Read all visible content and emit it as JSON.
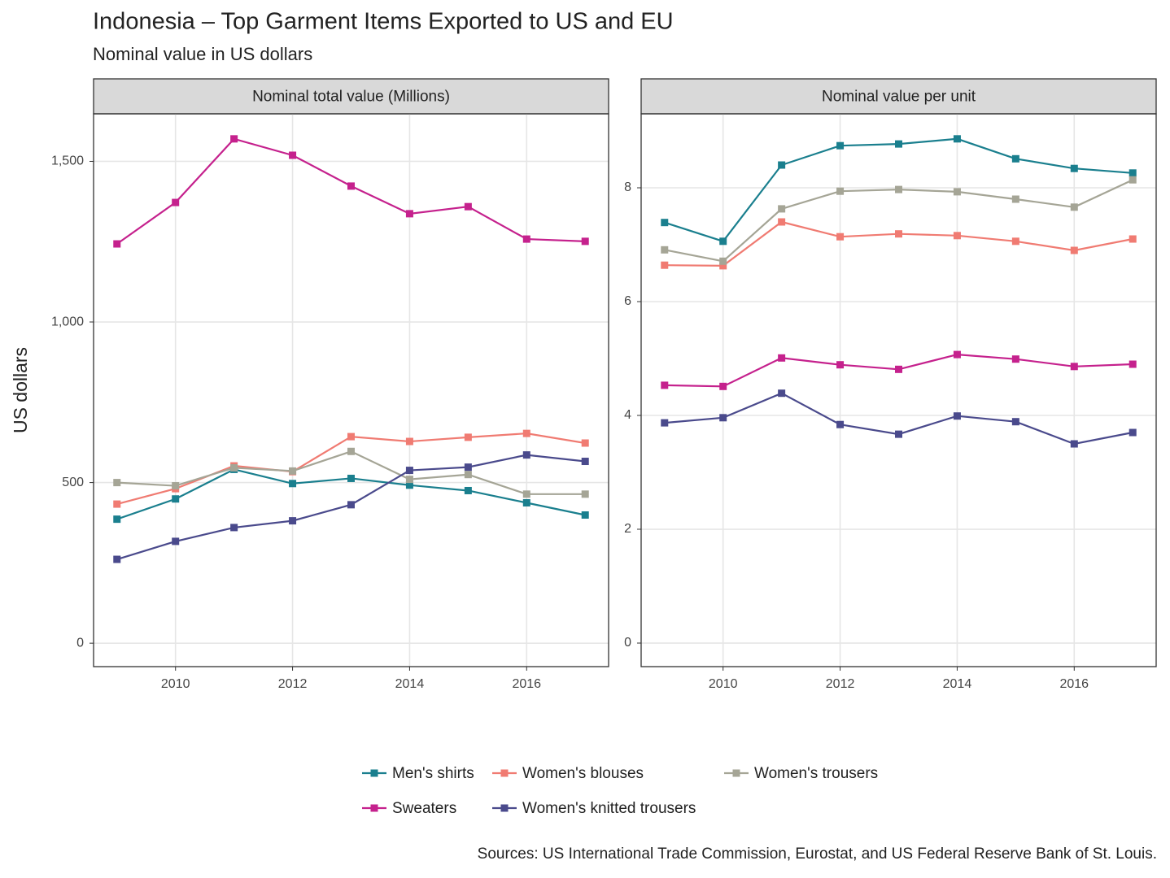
{
  "title": "Indonesia – Top Garment Items Exported to US and EU",
  "subtitle": "Nominal value in US dollars",
  "y_label": "US dollars",
  "source": "Sources: US International Trade Commission, Eurostat, and US Federal Reserve Bank of St. Louis.",
  "chart_data": [
    {
      "type": "line",
      "title": "Nominal total value (Millions)",
      "x": [
        2009,
        2010,
        2011,
        2012,
        2013,
        2014,
        2015,
        2016,
        2017
      ],
      "xlim": [
        2008.6,
        2017.4
      ],
      "xticks": [
        2010,
        2012,
        2014,
        2016
      ],
      "ylim": [
        -73,
        1648
      ],
      "yticks": [
        0,
        500,
        {
          "value": 1000,
          "label": "1,000"
        },
        {
          "value": 1500,
          "label": "1,500"
        }
      ],
      "grid": true,
      "series": [
        {
          "name": "Men's shirts",
          "color": "#1a7f8e",
          "values": [
            386,
            449,
            541,
            497,
            513,
            492,
            475,
            437,
            399
          ]
        },
        {
          "name": "Women's blouses",
          "color": "#f07b72",
          "values": [
            433,
            481,
            552,
            534,
            643,
            628,
            641,
            653,
            623
          ]
        },
        {
          "name": "Women's trousers",
          "color": "#a5a596",
          "values": [
            500,
            490,
            546,
            536,
            597,
            510,
            525,
            464,
            464
          ]
        },
        {
          "name": "Sweaters",
          "color": "#c5218d",
          "values": [
            1243,
            1372,
            1570,
            1519,
            1423,
            1337,
            1359,
            1258,
            1251
          ]
        },
        {
          "name": "Women's knitted trousers",
          "color": "#4a4a8c",
          "values": [
            261,
            317,
            360,
            381,
            431,
            538,
            548,
            586,
            566
          ]
        }
      ]
    },
    {
      "type": "line",
      "title": "Nominal value per unit",
      "x": [
        2009,
        2010,
        2011,
        2012,
        2013,
        2014,
        2015,
        2016,
        2017
      ],
      "xlim": [
        2008.6,
        2017.4
      ],
      "xticks": [
        2010,
        2012,
        2014,
        2016
      ],
      "ylim": [
        -0.414,
        9.3
      ],
      "yticks": [
        0,
        2,
        4,
        6,
        8
      ],
      "grid": true,
      "series": [
        {
          "values": [
            7.39,
            7.06,
            8.4,
            8.74,
            8.77,
            8.86,
            8.51,
            8.34,
            8.26
          ]
        },
        {
          "values": [
            6.64,
            6.63,
            7.4,
            7.14,
            7.19,
            7.16,
            7.06,
            6.9,
            7.1
          ]
        },
        {
          "values": [
            6.91,
            6.71,
            7.63,
            7.94,
            7.97,
            7.93,
            7.8,
            7.66,
            8.14
          ]
        },
        {
          "values": [
            4.53,
            4.51,
            5.01,
            4.89,
            4.81,
            5.07,
            4.99,
            4.86,
            4.9
          ]
        },
        {
          "values": [
            3.87,
            3.96,
            4.39,
            3.84,
            3.67,
            3.99,
            3.89,
            3.5,
            3.7
          ]
        }
      ]
    }
  ]
}
